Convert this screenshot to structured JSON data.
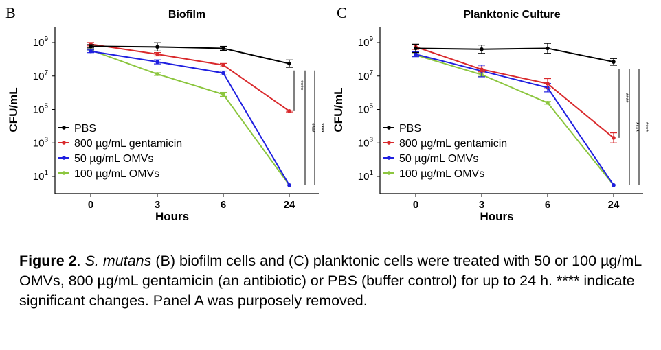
{
  "chart_data": [
    {
      "type": "line",
      "panel_letter": "B",
      "title": "Biofilm",
      "xlabel": "Hours",
      "ylabel": "CFU/mL",
      "x_scale": "categorical",
      "y_scale": "log10",
      "categories": [
        "0",
        "3",
        "6",
        "24"
      ],
      "yticks_exponents": [
        1,
        3,
        5,
        7,
        9
      ],
      "ylim": [
        3,
        3000000000
      ],
      "legend_position": "bottom-left",
      "series": [
        {
          "name": "PBS",
          "color": "#000000",
          "values": [
            600000000.0,
            550000000.0,
            450000000.0,
            55000000.0
          ],
          "errors_log": [
            0.1,
            0.25,
            0.12,
            0.22
          ]
        },
        {
          "name": "800 µg/mL gentamicin",
          "color": "#d9292c",
          "values": [
            800000000.0,
            200000000.0,
            45000000.0,
            80000.0
          ],
          "errors_log": [
            0.1,
            0.1,
            0.1,
            0.05
          ]
        },
        {
          "name": "50 µg/mL OMVs",
          "color": "#1f1fe0",
          "values": [
            300000000.0,
            70000000.0,
            15000000.0,
            3.0
          ],
          "errors_log": [
            0.08,
            0.12,
            0.12,
            0
          ]
        },
        {
          "name": "100 µg/mL OMVs",
          "color": "#8cc63f",
          "values": [
            350000000.0,
            13000000.0,
            800000.0,
            3.0
          ],
          "errors_log": [
            0.05,
            0.08,
            0.12,
            0
          ]
        }
      ],
      "significance": [
        {
          "label": "****",
          "between": [
            "PBS",
            "800 µg/mL gentamicin"
          ]
        },
        {
          "label": "****",
          "between": [
            "PBS",
            "50 µg/mL OMVs"
          ]
        },
        {
          "label": "****",
          "between": [
            "PBS",
            "100 µg/mL OMVs"
          ]
        }
      ]
    },
    {
      "type": "line",
      "panel_letter": "C",
      "title": "Planktonic Culture",
      "xlabel": "Hours",
      "ylabel": "CFU/mL",
      "x_scale": "categorical",
      "y_scale": "log10",
      "categories": [
        "0",
        "3",
        "6",
        "24"
      ],
      "yticks_exponents": [
        1,
        3,
        5,
        7,
        9
      ],
      "ylim": [
        3,
        3000000000
      ],
      "legend_position": "bottom-left",
      "series": [
        {
          "name": "PBS",
          "color": "#000000",
          "values": [
            450000000.0,
            400000000.0,
            450000000.0,
            70000000.0
          ],
          "errors_log": [
            0.25,
            0.25,
            0.3,
            0.2
          ]
        },
        {
          "name": "800 µg/mL gentamicin",
          "color": "#d9292c",
          "values": [
            550000000.0,
            25000000.0,
            3500000.0,
            2000.0
          ],
          "errors_log": [
            0.15,
            0.15,
            0.3,
            0.3
          ]
        },
        {
          "name": "50 µg/mL OMVs",
          "color": "#1f1fe0",
          "values": [
            200000000.0,
            20000000.0,
            2000000.0,
            3.0
          ],
          "errors_log": [
            0.15,
            0.35,
            0.25,
            0
          ]
        },
        {
          "name": "100 µg/mL OMVs",
          "color": "#8cc63f",
          "values": [
            180000000.0,
            12000000.0,
            250000.0,
            3.0
          ],
          "errors_log": [
            0.08,
            0.1,
            0.08,
            0
          ]
        }
      ],
      "significance": [
        {
          "label": "****",
          "between": [
            "PBS",
            "800 µg/mL gentamicin"
          ]
        },
        {
          "label": "****",
          "between": [
            "PBS",
            "50 µg/mL OMVs"
          ]
        },
        {
          "label": "****",
          "between": [
            "PBS",
            "100 µg/mL OMVs"
          ]
        }
      ]
    }
  ],
  "caption": {
    "label": "Figure 2",
    "part1": ". ",
    "species": "S. mutans",
    "part2": " (B) biofilm cells and (C) planktonic cells were treated with 50 or 100 µg/mL OMVs, 800 µg/mL gentamicin (an antibiotic) or PBS (buffer control) for up to 24 h. **** indicate significant changes. Panel A was purposely removed."
  }
}
